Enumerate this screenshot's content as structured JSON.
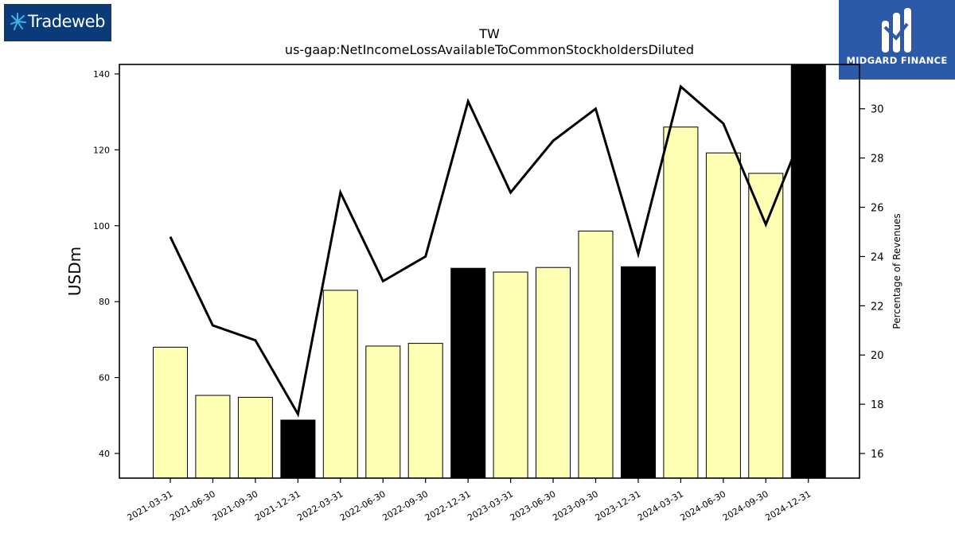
{
  "logos": {
    "left": {
      "text": "Tradeweb",
      "color": "#0a3a78"
    },
    "right": {
      "text": "MIDGARD FINANCE",
      "color": "#2c5aa8"
    }
  },
  "chart_data": {
    "type": "bar",
    "title": "TW",
    "subtitle": "us-gaap:NetIncomeLossAvailableToCommonStockholdersDiluted",
    "ylabel": "USDm",
    "y2label": "Percentage of Revenues",
    "categories": [
      "2021-03-31",
      "2021-06-30",
      "2021-09-30",
      "2021-12-31",
      "2022-03-31",
      "2022-06-30",
      "2022-09-30",
      "2022-12-31",
      "2023-03-31",
      "2023-06-30",
      "2023-09-30",
      "2023-12-31",
      "2024-03-31",
      "2024-06-30",
      "2024-09-30",
      "2024-12-31"
    ],
    "series": [
      {
        "type": "bar",
        "axis": "left",
        "values": [
          68.0,
          55.3,
          54.8,
          48.8,
          83.0,
          68.3,
          69.0,
          88.8,
          87.8,
          89.0,
          98.6,
          89.2,
          126.0,
          119.2,
          113.8,
          143.0
        ],
        "colors": [
          "#ffffb3",
          "#ffffb3",
          "#ffffb3",
          "#000000",
          "#ffffb3",
          "#ffffb3",
          "#ffffb3",
          "#000000",
          "#ffffb3",
          "#ffffb3",
          "#ffffb3",
          "#000000",
          "#ffffb3",
          "#ffffb3",
          "#ffffb3",
          "#000000"
        ]
      },
      {
        "type": "line",
        "axis": "right",
        "color": "#000000",
        "values": [
          24.8,
          21.2,
          20.6,
          17.6,
          26.6,
          23.0,
          24.0,
          30.3,
          26.6,
          28.7,
          30.0,
          24.1,
          30.9,
          29.4,
          25.3,
          29.6
        ]
      }
    ],
    "ylim": [
      33.5,
      142.5
    ],
    "y2lim": [
      15.0,
      31.8
    ],
    "yticks": [
      40,
      60,
      80,
      100,
      120,
      140
    ],
    "y2ticks": [
      16,
      18,
      20,
      22,
      24,
      26,
      28,
      30
    ],
    "grid": false,
    "legend": "none"
  }
}
